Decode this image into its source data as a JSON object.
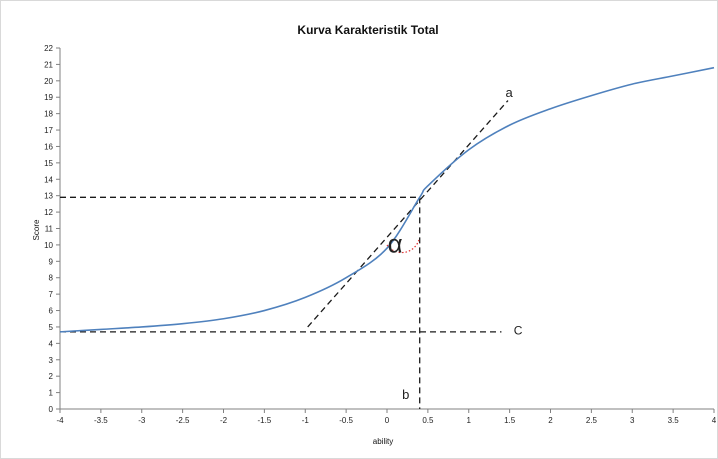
{
  "chart_data": {
    "type": "line",
    "title": "Kurva Karakteristik Total",
    "xlabel": "ability",
    "ylabel": "Score",
    "xlim": [
      -4,
      4
    ],
    "ylim": [
      0,
      22
    ],
    "x_ticks": [
      "-4",
      "-3.5",
      "-3",
      "-2.5",
      "-2",
      "-1.5",
      "-1",
      "-0.5",
      "0",
      "0.5",
      "1",
      "1.5",
      "2",
      "2.5",
      "3",
      "3.5",
      "4"
    ],
    "y_ticks": [
      "0",
      "1",
      "2",
      "3",
      "4",
      "5",
      "6",
      "7",
      "8",
      "9",
      "10",
      "11",
      "12",
      "13",
      "14",
      "15",
      "16",
      "17",
      "18",
      "19",
      "20",
      "21",
      "22"
    ],
    "grid": false,
    "series": [
      {
        "color": "#4f81bd",
        "x": [
          -4,
          -3.5,
          -3,
          -2.5,
          -2,
          -1.5,
          -1,
          -0.5,
          0,
          0.4,
          0.5,
          1,
          1.5,
          2,
          2.5,
          3,
          3.5,
          4
        ],
        "y": [
          4.7,
          4.85,
          5.0,
          5.2,
          5.5,
          6.0,
          6.8,
          8.0,
          9.8,
          12.9,
          13.6,
          15.8,
          17.3,
          18.3,
          19.1,
          19.8,
          20.3,
          20.8
        ]
      }
    ],
    "reference_lines": {
      "horizontal_score": 12.9,
      "vertical_ability": 0.4,
      "lower_asymptote": 4.7,
      "tangent_from": [
        -0.97,
        5.0
      ],
      "tangent_to": [
        1.48,
        18.8
      ]
    },
    "annotations": {
      "a": "a",
      "b": "b",
      "c": "C",
      "alpha": "α"
    }
  }
}
